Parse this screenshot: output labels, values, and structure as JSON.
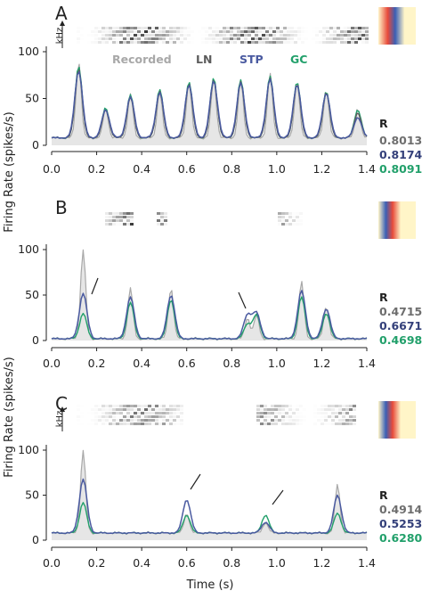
{
  "colors": {
    "recorded": "#a8a8a8",
    "recorded_fill": "#e6e6e6",
    "LN": "#5c5c5c",
    "STP": "#4a5aa0",
    "GC": "#22a06b",
    "r_recorded": "#6e6e6e",
    "r_STP": "#34407a",
    "r_GC": "#22a06b"
  },
  "ylabel_top": "Firing Rate (spikes/s)",
  "ylabel_bottom": "Firing Rate (spikes/s)",
  "xlabel": "Time (s)",
  "khz_label": "kHz",
  "r_header": "R",
  "legend": [
    "Recorded",
    "LN",
    "STP",
    "GC"
  ],
  "chart_data": [
    {
      "type": "line",
      "panel": "A",
      "xlim": [
        0,
        1.4
      ],
      "ylim": [
        0,
        100
      ],
      "xticks": [
        "0.0",
        "0.2",
        "0.4",
        "0.6",
        "0.8",
        "1.0",
        "1.2",
        "1.4"
      ],
      "yticks": [
        "0",
        "50",
        "100"
      ],
      "peaks": [
        0.12,
        0.24,
        0.35,
        0.48,
        0.61,
        0.72,
        0.84,
        0.97,
        1.09,
        1.22,
        1.36
      ],
      "recorded_peaks": [
        90,
        40,
        55,
        58,
        68,
        72,
        70,
        77,
        68,
        60,
        40
      ],
      "ln_peaks": [
        82,
        38,
        52,
        58,
        66,
        70,
        68,
        72,
        66,
        57,
        35
      ],
      "stp_peaks": [
        80,
        38,
        52,
        57,
        65,
        69,
        67,
        71,
        65,
        56,
        30
      ],
      "gc_peaks": [
        85,
        40,
        54,
        60,
        68,
        72,
        70,
        74,
        68,
        58,
        38
      ],
      "baseline": 8,
      "series": [
        {
          "name": "Recorded",
          "R": "0.8013"
        },
        {
          "name": "LN",
          "R": ""
        },
        {
          "name": "STP",
          "R": "0.8174"
        },
        {
          "name": "GC",
          "R": "0.8091"
        }
      ]
    },
    {
      "type": "line",
      "panel": "B",
      "xlim": [
        0,
        1.4
      ],
      "ylim": [
        0,
        100
      ],
      "xticks": [
        "0.0",
        "0.2",
        "0.4",
        "0.6",
        "0.8",
        "1.0",
        "1.2",
        "1.4"
      ],
      "yticks": [
        "0",
        "50",
        "100"
      ],
      "peaks": [
        0.14,
        0.35,
        0.53,
        0.87,
        0.91,
        1.11,
        1.22
      ],
      "recorded_peaks": [
        100,
        58,
        58,
        25,
        28,
        65,
        38
      ],
      "ln_peaks": [
        28,
        40,
        42,
        15,
        25,
        45,
        28
      ],
      "stp_peaks": [
        52,
        48,
        50,
        28,
        30,
        55,
        35
      ],
      "gc_peaks": [
        30,
        42,
        45,
        18,
        28,
        48,
        30
      ],
      "baseline": 2,
      "series": [
        {
          "name": "Recorded",
          "R": "0.4715"
        },
        {
          "name": "STP",
          "R": "0.6671"
        },
        {
          "name": "GC",
          "R": "0.4698"
        }
      ]
    },
    {
      "type": "line",
      "panel": "C",
      "xlim": [
        0,
        1.4
      ],
      "ylim": [
        0,
        100
      ],
      "xticks": [
        "0.0",
        "0.2",
        "0.4",
        "0.6",
        "0.8",
        "1.0",
        "1.2",
        "1.4"
      ],
      "yticks": [
        "0",
        "50",
        "100"
      ],
      "peaks": [
        0.14,
        0.6,
        0.95,
        1.27
      ],
      "recorded_peaks": [
        100,
        30,
        20,
        62
      ],
      "ln_peaks": [
        25,
        12,
        10,
        55
      ],
      "stp_peaks": [
        68,
        45,
        20,
        50
      ],
      "gc_peaks": [
        42,
        28,
        28,
        30
      ],
      "baseline": 8,
      "series": [
        {
          "name": "Recorded",
          "R": "0.4914"
        },
        {
          "name": "STP",
          "R": "0.5253"
        },
        {
          "name": "GC",
          "R": "0.6280"
        }
      ]
    }
  ]
}
